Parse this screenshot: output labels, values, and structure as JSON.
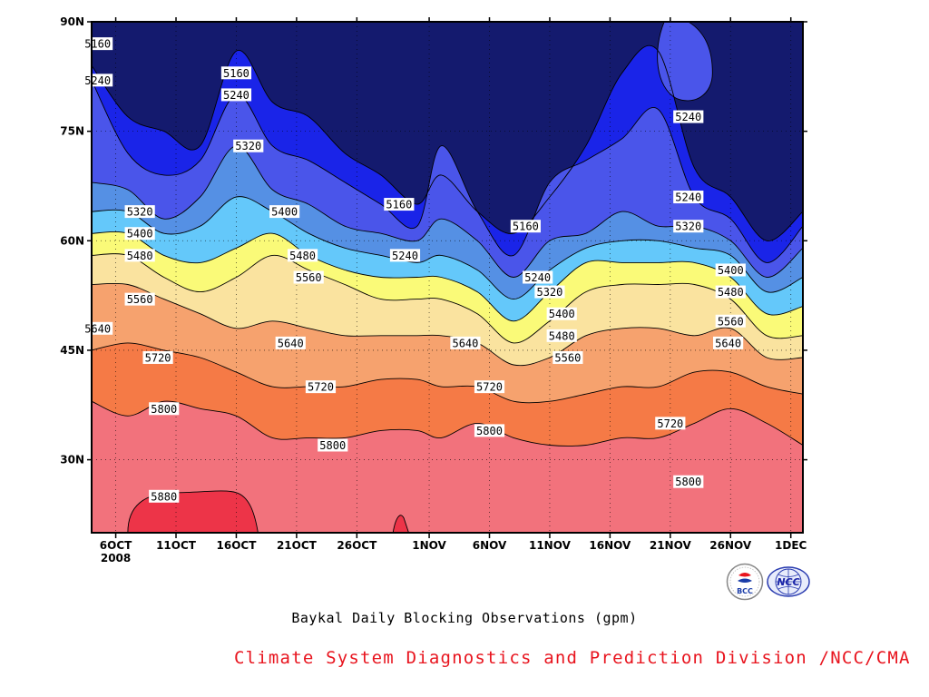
{
  "title": "Baykal Daily Blocking Observations (gpm)",
  "credit": "Climate System Diagnostics and Prediction Division /NCC/CMA",
  "logos": [
    {
      "name": "bcc-logo",
      "text": "BCC"
    },
    {
      "name": "ncc-logo",
      "text": "NCC"
    }
  ],
  "chart_data": {
    "type": "heatmap",
    "subtype": "filled-contour (time-latitude)",
    "units": "gpm",
    "x_axis": {
      "ticks": [
        "6OCT",
        "11OCT",
        "16OCT",
        "21OCT",
        "26OCT",
        "1NOV",
        "6NOV",
        "11NOV",
        "16NOV",
        "21NOV",
        "26NOV",
        "1DEC"
      ],
      "year_label": "2008",
      "range": [
        "2008-10-04",
        "2008-12-02"
      ]
    },
    "y_axis": {
      "ticks": [
        "90N",
        "75N",
        "60N",
        "45N",
        "30N"
      ],
      "range": [
        20,
        90
      ]
    },
    "grid": "dotted",
    "levels": [
      5160,
      5240,
      5320,
      5400,
      5480,
      5560,
      5640,
      5720,
      5800,
      5880
    ],
    "colors": [
      "#141a6e",
      "#1a24e8",
      "#4a55ea",
      "#5590e4",
      "#64c8fa",
      "#fafa78",
      "#fae39f",
      "#f6a26e",
      "#f57a46",
      "#f2727c",
      "#ed3448"
    ],
    "time_days": [
      4,
      7,
      10,
      13,
      16,
      19,
      22,
      25,
      28,
      31,
      33,
      36,
      39,
      42,
      45,
      48,
      51,
      54,
      57,
      60,
      63
    ],
    "contour_lat": {
      "5160": [
        84,
        77,
        75,
        73,
        86,
        79,
        77,
        72,
        69,
        65,
        69,
        64,
        61,
        66,
        73,
        83,
        86,
        70,
        66,
        60,
        64
      ],
      "5240": [
        82,
        72,
        69,
        71,
        80,
        73,
        71,
        68,
        65,
        62,
        73,
        64,
        58,
        68,
        71,
        74,
        78,
        66,
        63,
        57,
        62
      ],
      "5320": [
        68,
        67,
        63,
        66,
        73,
        67,
        65,
        62,
        61,
        60,
        63,
        60,
        55,
        60,
        61,
        64,
        62,
        62,
        60,
        55,
        59
      ],
      "5400": [
        64,
        64,
        61,
        62,
        66,
        64,
        61,
        59,
        58,
        57,
        58,
        56,
        52,
        56,
        59,
        60,
        60,
        59,
        58,
        53,
        55
      ],
      "5480": [
        61,
        61,
        58,
        57,
        59,
        61,
        58,
        56,
        55,
        55,
        55,
        53,
        49,
        53,
        57,
        57,
        57,
        57,
        55,
        50,
        51
      ],
      "5560": [
        58,
        58,
        55,
        53,
        55,
        58,
        56,
        54,
        52,
        52,
        52,
        50,
        46,
        49,
        53,
        54,
        54,
        54,
        52,
        47,
        47
      ],
      "5640": [
        54,
        54,
        52,
        50,
        48,
        49,
        48,
        47,
        47,
        47,
        47,
        46,
        43,
        44,
        47,
        48,
        48,
        47,
        48,
        44,
        44
      ],
      "5720": [
        45,
        46,
        45,
        44,
        42,
        40,
        40,
        40,
        41,
        41,
        40,
        40,
        38,
        38,
        39,
        40,
        40,
        42,
        42,
        40,
        39
      ],
      "5800": [
        38,
        36,
        38,
        37,
        36,
        33,
        33,
        33,
        34,
        34,
        33,
        35,
        33,
        32,
        32,
        33,
        33,
        35,
        37,
        35,
        32
      ],
      "5880": [
        null,
        null,
        null,
        null,
        null,
        null,
        null,
        null,
        null,
        null,
        null,
        null,
        null,
        null,
        null,
        null,
        null,
        null,
        null,
        null,
        null
      ]
    },
    "labels": [
      {
        "text": "5160",
        "day": 4.5,
        "lat": 87
      },
      {
        "text": "5240",
        "day": 4.5,
        "lat": 82
      },
      {
        "text": "5160",
        "day": 16,
        "lat": 83
      },
      {
        "text": "5240",
        "day": 16,
        "lat": 80
      },
      {
        "text": "5320",
        "day": 17,
        "lat": 73
      },
      {
        "text": "5320",
        "day": 8,
        "lat": 64
      },
      {
        "text": "5400",
        "day": 8,
        "lat": 61
      },
      {
        "text": "5480",
        "day": 8,
        "lat": 58
      },
      {
        "text": "5560",
        "day": 8,
        "lat": 52
      },
      {
        "text": "5640",
        "day": 4.5,
        "lat": 48
      },
      {
        "text": "5720",
        "day": 9.5,
        "lat": 44
      },
      {
        "text": "5800",
        "day": 10,
        "lat": 37
      },
      {
        "text": "5880",
        "day": 10,
        "lat": 25
      },
      {
        "text": "5400",
        "day": 20,
        "lat": 64
      },
      {
        "text": "5480",
        "day": 21.5,
        "lat": 58
      },
      {
        "text": "5560",
        "day": 22,
        "lat": 55
      },
      {
        "text": "5640",
        "day": 20.5,
        "lat": 46
      },
      {
        "text": "5720",
        "day": 23,
        "lat": 40
      },
      {
        "text": "5800",
        "day": 24,
        "lat": 32
      },
      {
        "text": "5160",
        "day": 29.5,
        "lat": 65
      },
      {
        "text": "5240",
        "day": 30,
        "lat": 58
      },
      {
        "text": "5640",
        "day": 35,
        "lat": 46
      },
      {
        "text": "5720",
        "day": 37,
        "lat": 40
      },
      {
        "text": "5800",
        "day": 37,
        "lat": 34
      },
      {
        "text": "5160",
        "day": 40,
        "lat": 62
      },
      {
        "text": "5240",
        "day": 41,
        "lat": 55
      },
      {
        "text": "5320",
        "day": 42,
        "lat": 53
      },
      {
        "text": "5400",
        "day": 43,
        "lat": 50
      },
      {
        "text": "5480",
        "day": 43,
        "lat": 47
      },
      {
        "text": "5560",
        "day": 43.5,
        "lat": 44
      },
      {
        "text": "5240",
        "day": 53.5,
        "lat": 77
      },
      {
        "text": "5240",
        "day": 53.5,
        "lat": 66
      },
      {
        "text": "5320",
        "day": 53.5,
        "lat": 62
      },
      {
        "text": "5400",
        "day": 57,
        "lat": 56
      },
      {
        "text": "5480",
        "day": 57,
        "lat": 53
      },
      {
        "text": "5560",
        "day": 57,
        "lat": 49
      },
      {
        "text": "5640",
        "day": 56.8,
        "lat": 46
      },
      {
        "text": "5720",
        "day": 52,
        "lat": 35
      },
      {
        "text": "5800",
        "day": 53.5,
        "lat": 27
      }
    ]
  }
}
